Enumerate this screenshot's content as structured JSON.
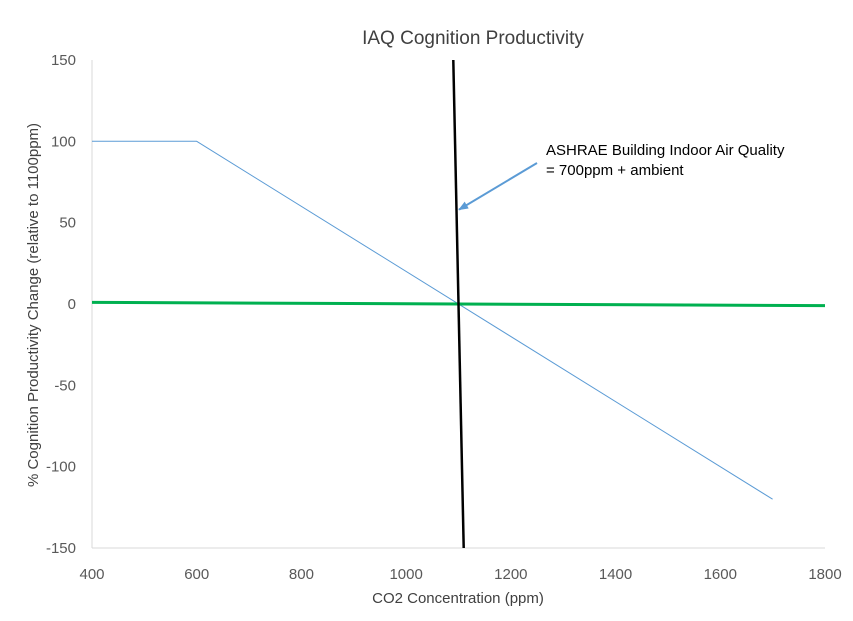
{
  "chart_data": {
    "type": "line",
    "title": "IAQ Cognition Productivity",
    "xlabel": "CO2 Concentration (ppm)",
    "ylabel": "% Cognition Productivity Change (relative to 1100ppm)",
    "xlim": [
      400,
      1800
    ],
    "ylim": [
      -150,
      150
    ],
    "x_ticks": [
      400,
      600,
      800,
      1000,
      1200,
      1400,
      1600,
      1800
    ],
    "y_ticks": [
      150,
      100,
      50,
      0,
      -50,
      -100,
      -150
    ],
    "grid": false,
    "legend": "none",
    "series": [
      {
        "color": "#5b9bd5",
        "width": 1,
        "points": [
          [
            400,
            100
          ],
          [
            600,
            100
          ],
          [
            1700,
            -120
          ]
        ]
      },
      {
        "color": "#00b050",
        "width": 3,
        "points": [
          [
            400,
            1
          ],
          [
            1800,
            -1
          ]
        ]
      },
      {
        "color": "#000000",
        "width": 2.5,
        "points": [
          [
            1090,
            150
          ],
          [
            1110,
            -150
          ]
        ]
      }
    ],
    "annotation": {
      "lines": [
        "ASHRAE Building Indoor Air Quality",
        "= 700ppm + ambient"
      ],
      "arrow_target": [
        1101,
        58
      ],
      "arrow_color": "#5b9bd5"
    }
  }
}
